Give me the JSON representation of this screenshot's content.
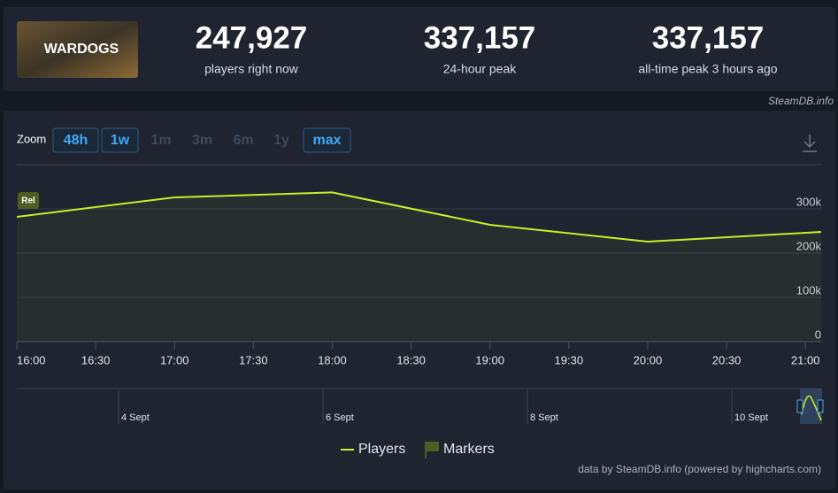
{
  "header": {
    "game": "WARDOGS",
    "stats": [
      {
        "value": "247,927",
        "label": "players right now"
      },
      {
        "value": "337,157",
        "label": "24-hour peak"
      },
      {
        "value": "337,157",
        "label": "all-time peak 3 hours ago"
      }
    ],
    "source": "SteamDB.info"
  },
  "zoom": {
    "label": "Zoom",
    "buttons": [
      {
        "label": "48h",
        "enabled": true
      },
      {
        "label": "1w",
        "enabled": true
      },
      {
        "label": "1m",
        "enabled": false
      },
      {
        "label": "3m",
        "enabled": false
      },
      {
        "label": "6m",
        "enabled": false
      },
      {
        "label": "1y",
        "enabled": false
      },
      {
        "label": "max",
        "enabled": true
      }
    ]
  },
  "chart_data": {
    "type": "line",
    "x": [
      16,
      17,
      18,
      19,
      20,
      21.1
    ],
    "series": [
      {
        "name": "Players",
        "color": "#c8ef2a",
        "values": [
          282000,
          326000,
          337157,
          264000,
          226000,
          247927
        ]
      }
    ],
    "markers_legend": {
      "name": "Markers",
      "color": "#4c5e22"
    },
    "markers": [
      {
        "label": "Rel",
        "x": 16
      }
    ],
    "xlim": [
      16,
      21.1
    ],
    "xticks": [
      {
        "value": 16,
        "label": "16:00"
      },
      {
        "value": 16.5,
        "label": "16:30"
      },
      {
        "value": 17,
        "label": "17:00"
      },
      {
        "value": 17.5,
        "label": "17:30"
      },
      {
        "value": 18,
        "label": "18:00"
      },
      {
        "value": 18.5,
        "label": "18:30"
      },
      {
        "value": 19,
        "label": "19:00"
      },
      {
        "value": 19.5,
        "label": "19:30"
      },
      {
        "value": 20,
        "label": "20:00"
      },
      {
        "value": 20.5,
        "label": "20:30"
      },
      {
        "value": 21,
        "label": "21:00"
      }
    ],
    "ylim": [
      0,
      400000
    ],
    "yticks": [
      0,
      {
        "value": 100000,
        "label": "100k"
      },
      {
        "value": 200000,
        "label": "200k"
      },
      {
        "value": 300000,
        "label": "300k"
      }
    ],
    "grid": true,
    "navigator_labels": [
      "4 Sept",
      "6 Sept",
      "8 Sept",
      "10 Sept"
    ],
    "credits": "data by SteamDB.info (powered by highcharts.com)"
  }
}
